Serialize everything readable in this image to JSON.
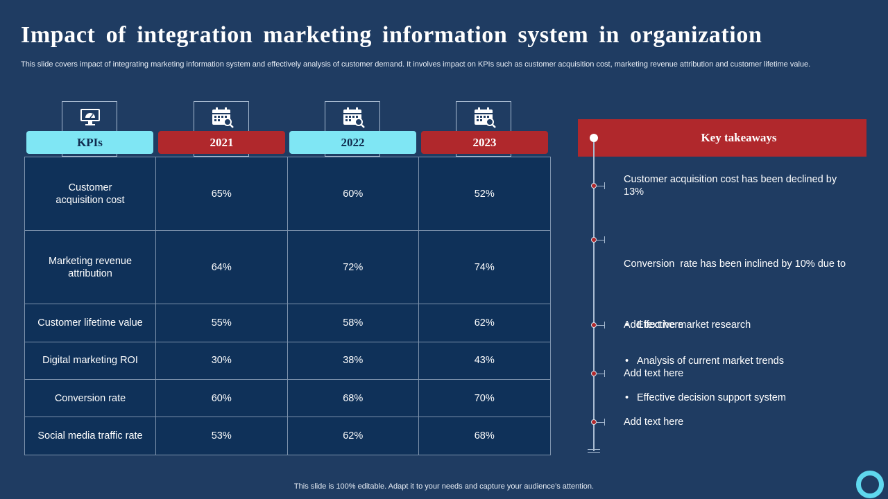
{
  "slide": {
    "title": "Impact of integration marketing information system in organization",
    "subtitle": "This slide covers impact of integrating marketing information system and effectively analysis of customer demand. It involves impact on KPIs such as customer acquisition cost, marketing revenue attribution and customer lifetime value.",
    "footer": "This slide is 100% editable. Adapt it to your needs and capture your audience’s attention."
  },
  "table": {
    "headers": [
      "KPIs",
      "2021",
      "2022",
      "2023"
    ],
    "icons": [
      "monitor-dashboard-icon",
      "calendar-search-icon",
      "calendar-search-icon",
      "calendar-search-icon"
    ],
    "rows": [
      {
        "kpi": "Customer acquisition cost",
        "values": [
          "65%",
          "60%",
          "52%"
        ]
      },
      {
        "kpi": "Marketing revenue attribution",
        "values": [
          "64%",
          "72%",
          "74%"
        ]
      },
      {
        "kpi": "Customer lifetime value",
        "values": [
          "55%",
          "58%",
          "62%"
        ]
      },
      {
        "kpi": "Digital marketing ROI",
        "values": [
          "30%",
          "38%",
          "43%"
        ]
      },
      {
        "kpi": "Conversion rate",
        "values": [
          "60%",
          "68%",
          "70%"
        ]
      },
      {
        "kpi": "Social media traffic rate",
        "values": [
          "53%",
          "62%",
          "68%"
        ]
      }
    ]
  },
  "takeaways": {
    "title": "Key takeaways",
    "items": [
      {
        "text": "Customer acquisition cost has been declined by 13%"
      },
      {
        "text": "Conversion  rate has been inclined by 10% due to",
        "bullets": [
          "Effective market research",
          "Analysis of current market trends",
          "Effective decision support system"
        ]
      },
      {
        "text": "Add text here"
      },
      {
        "text": "Add text here"
      },
      {
        "text": "Add text here"
      }
    ]
  },
  "colors": {
    "background": "#1f3c62",
    "table_fill": "#0f3159",
    "cyan": "#7fe6f4",
    "red": "#b0282c",
    "ring": "#5fd8ee"
  }
}
